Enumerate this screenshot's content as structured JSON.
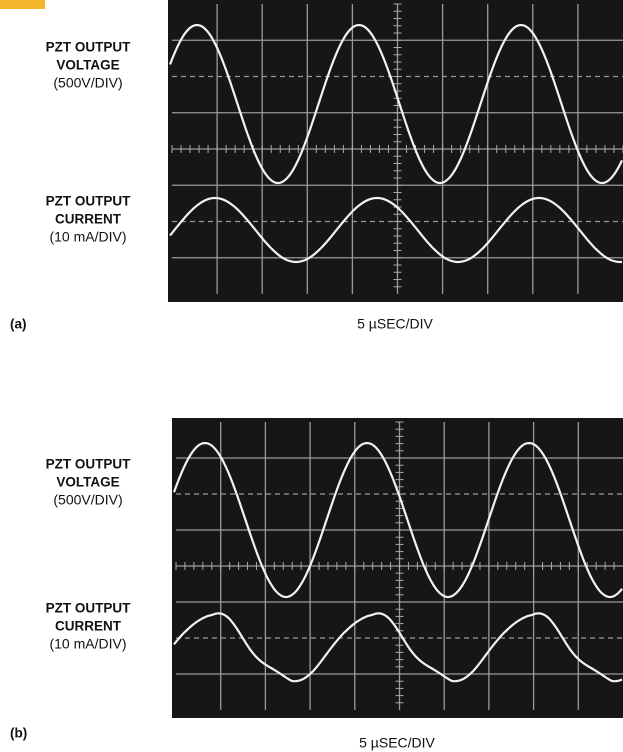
{
  "panels": [
    {
      "tag": "(a)",
      "voltage_label": [
        "PZT OUTPUT",
        "VOLTAGE",
        "(500V/DIV)"
      ],
      "current_label": [
        "PZT OUTPUT",
        "CURRENT",
        "(10 mA/DIV)"
      ],
      "timebase": "5 µSEC/DIV"
    },
    {
      "tag": "(b)",
      "voltage_label": [
        "PZT OUTPUT",
        "VOLTAGE",
        "(500V/DIV)"
      ],
      "current_label": [
        "PZT OUTPUT",
        "CURRENT",
        "(10 mA/DIV)"
      ],
      "timebase": "5 µSEC/DIV"
    }
  ]
}
